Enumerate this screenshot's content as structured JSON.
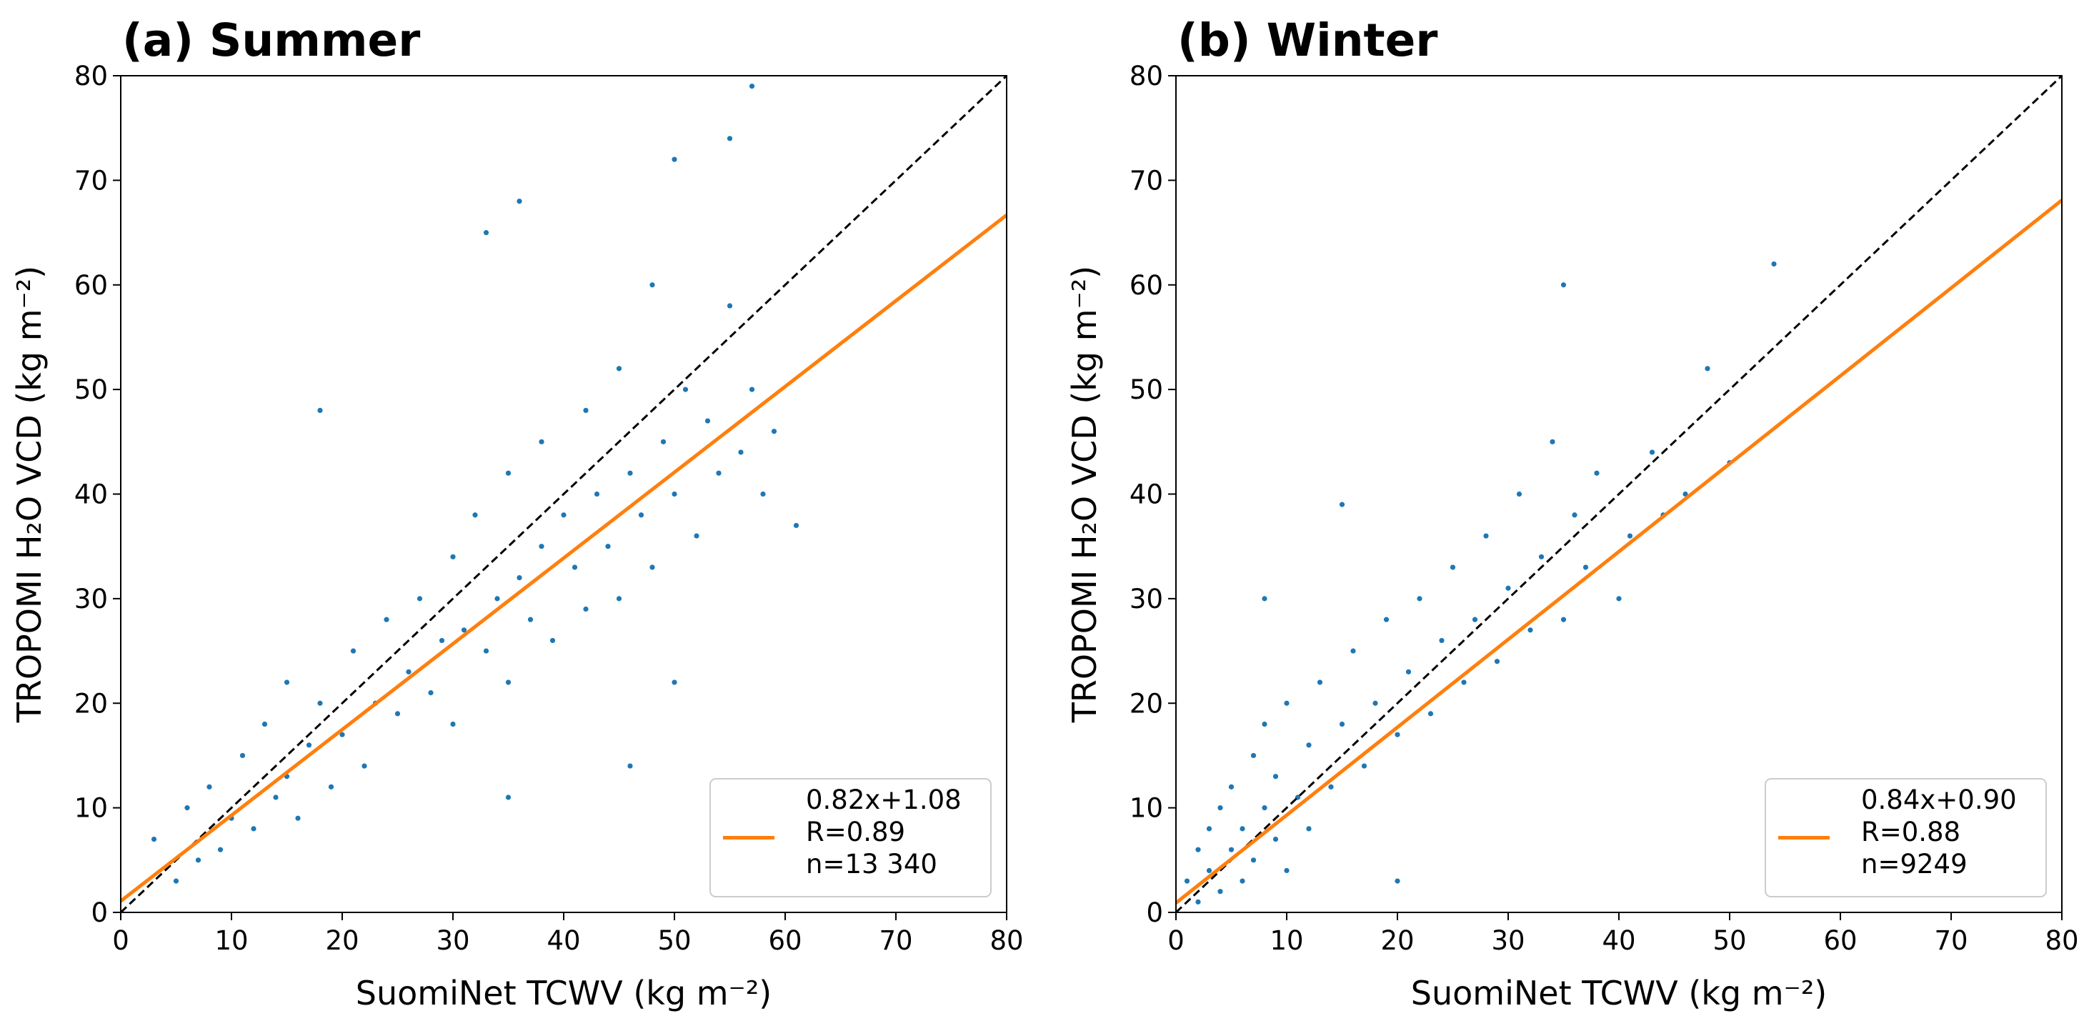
{
  "chart_data": [
    {
      "type": "scatter",
      "title": "(a) Summer",
      "x_label": "SuomiNet TCWV (kg m⁻²)",
      "y_label": "TROPOMI H₂O VCD (kg m⁻²)",
      "xlim": [
        0,
        80
      ],
      "ylim": [
        0,
        80
      ],
      "xticks": [
        0,
        10,
        20,
        30,
        40,
        50,
        60,
        70,
        80
      ],
      "yticks": [
        0,
        10,
        20,
        30,
        40,
        50,
        60,
        70,
        80
      ],
      "legend_position": "lower right",
      "series": [
        {
          "color": "#1f77b4",
          "x": [
            3,
            5,
            6,
            7,
            8,
            9,
            10,
            11,
            12,
            13,
            14,
            15,
            15,
            16,
            17,
            18,
            19,
            20,
            21,
            22,
            23,
            24,
            25,
            26,
            27,
            28,
            29,
            30,
            30,
            31,
            32,
            33,
            34,
            35,
            35,
            36,
            37,
            38,
            38,
            39,
            40,
            41,
            42,
            42,
            43,
            44,
            45,
            45,
            46,
            47,
            48,
            48,
            49,
            50,
            51,
            52,
            53,
            54,
            55,
            56,
            57,
            58,
            59,
            61,
            36,
            50,
            33,
            18,
            46,
            35,
            50,
            57,
            55
          ],
          "values": [
            7,
            3,
            10,
            5,
            12,
            6,
            9,
            15,
            8,
            18,
            11,
            13,
            22,
            9,
            16,
            20,
            12,
            17,
            25,
            14,
            20,
            28,
            19,
            23,
            30,
            21,
            26,
            34,
            18,
            27,
            38,
            25,
            30,
            42,
            22,
            32,
            28,
            45,
            35,
            26,
            38,
            33,
            48,
            29,
            40,
            35,
            52,
            30,
            42,
            38,
            60,
            33,
            45,
            40,
            50,
            36,
            47,
            42,
            58,
            44,
            50,
            40,
            46,
            37,
            68,
            72,
            65,
            48,
            14,
            11,
            22,
            79,
            74
          ]
        },
        {
          "color": "#000000",
          "style": "dashed",
          "x": [
            0,
            80
          ],
          "values": [
            0,
            80
          ]
        },
        {
          "color": "#ff7f0e",
          "x": [
            0,
            80
          ],
          "values": [
            1.08,
            66.68
          ],
          "legend_lines": [
            "0.82x+1.08",
            "R=0.89",
            "n=13 340"
          ]
        }
      ]
    },
    {
      "type": "scatter",
      "title": "(b) Winter",
      "x_label": "SuomiNet TCWV (kg m⁻²)",
      "y_label": "TROPOMI H₂O VCD (kg m⁻²)",
      "xlim": [
        0,
        80
      ],
      "ylim": [
        0,
        80
      ],
      "xticks": [
        0,
        10,
        20,
        30,
        40,
        50,
        60,
        70,
        80
      ],
      "yticks": [
        0,
        10,
        20,
        30,
        40,
        50,
        60,
        70,
        80
      ],
      "legend_position": "lower right",
      "series": [
        {
          "color": "#1f77b4",
          "x": [
            1,
            2,
            2,
            3,
            3,
            4,
            4,
            5,
            5,
            6,
            6,
            7,
            7,
            8,
            8,
            9,
            9,
            10,
            10,
            11,
            12,
            12,
            13,
            14,
            15,
            16,
            17,
            18,
            19,
            20,
            21,
            22,
            23,
            24,
            25,
            26,
            27,
            28,
            29,
            30,
            31,
            32,
            33,
            34,
            35,
            36,
            37,
            38,
            40,
            41,
            43,
            44,
            46,
            48,
            50,
            54,
            35,
            15,
            8,
            20
          ],
          "values": [
            3,
            6,
            1,
            8,
            4,
            2,
            10,
            6,
            12,
            3,
            8,
            15,
            5,
            10,
            18,
            7,
            13,
            4,
            20,
            11,
            16,
            8,
            22,
            12,
            18,
            25,
            14,
            20,
            28,
            17,
            23,
            30,
            19,
            26,
            33,
            22,
            28,
            36,
            24,
            31,
            40,
            27,
            34,
            45,
            28,
            38,
            33,
            42,
            30,
            36,
            44,
            38,
            40,
            52,
            43,
            62,
            60,
            39,
            30,
            3
          ]
        },
        {
          "color": "#000000",
          "style": "dashed",
          "x": [
            0,
            80
          ],
          "values": [
            0,
            80
          ]
        },
        {
          "color": "#ff7f0e",
          "x": [
            0,
            80
          ],
          "values": [
            0.9,
            68.1
          ],
          "legend_lines": [
            "0.84x+0.90",
            "R=0.88",
            "n=9249"
          ]
        }
      ]
    }
  ]
}
